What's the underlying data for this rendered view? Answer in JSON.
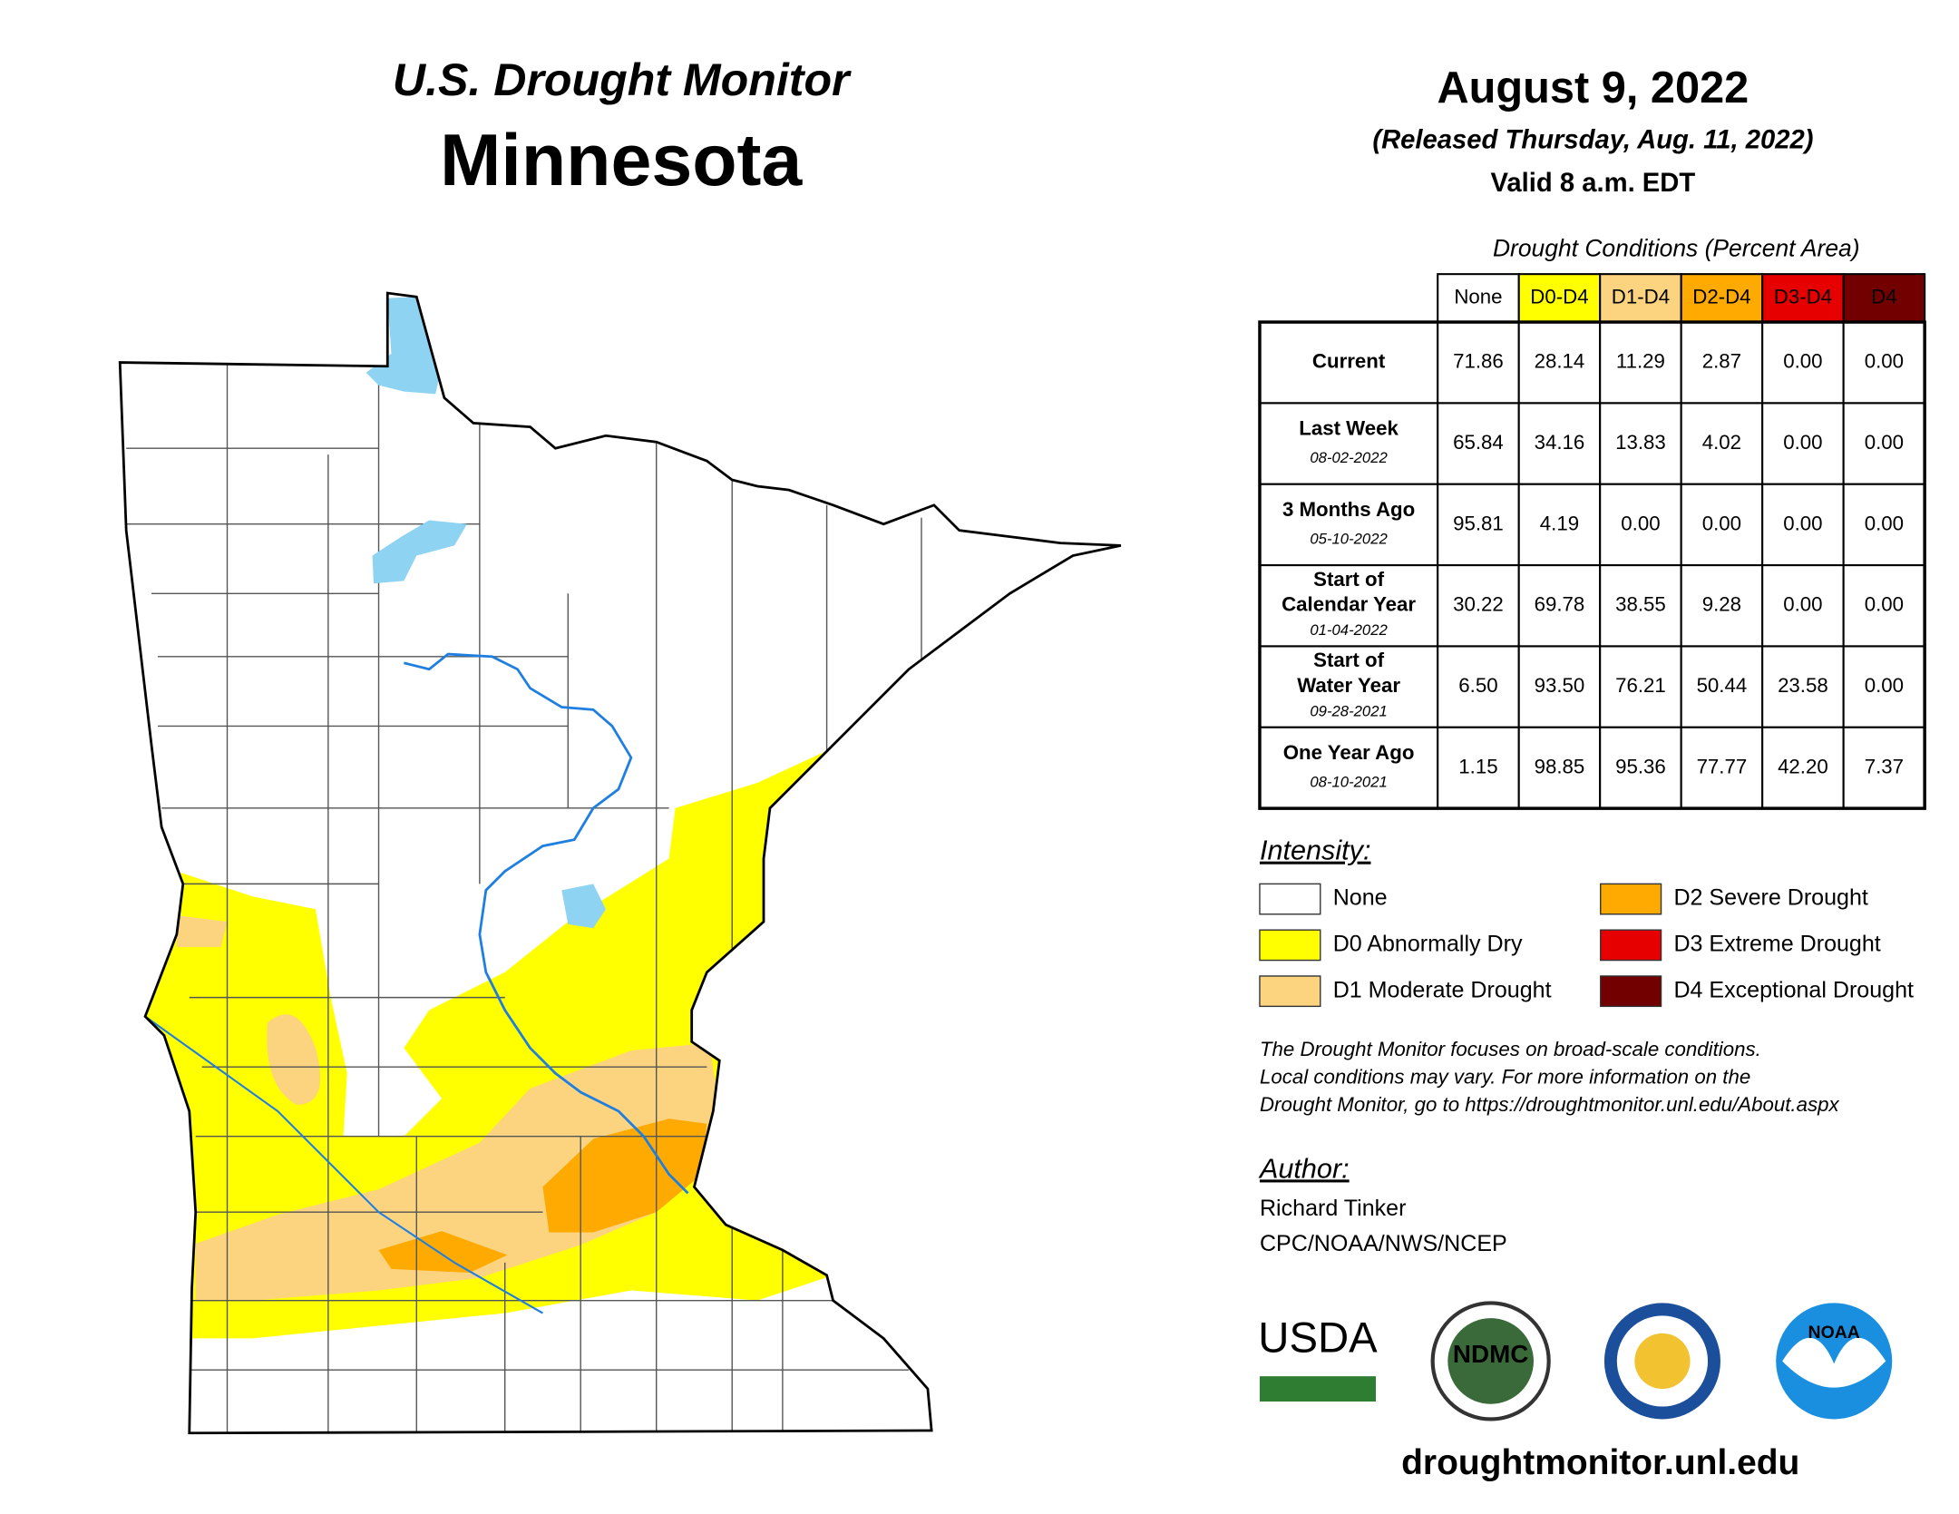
{
  "header": {
    "title": "U.S. Drought Monitor",
    "state": "Minnesota",
    "date": "August 9, 2022",
    "released": "(Released Thursday, Aug. 11, 2022)",
    "valid": "Valid 8 a.m. EDT"
  },
  "table": {
    "caption": "Drought Conditions (Percent Area)",
    "columns": [
      "None",
      "D0-D4",
      "D1-D4",
      "D2-D4",
      "D3-D4",
      "D4"
    ],
    "rows": [
      {
        "label": [
          "Current"
        ],
        "values": [
          "71.86",
          "28.14",
          "11.29",
          "2.87",
          "0.00",
          "0.00"
        ]
      },
      {
        "label": [
          "Last Week"
        ],
        "date": "08-02-2022",
        "values": [
          "65.84",
          "34.16",
          "13.83",
          "4.02",
          "0.00",
          "0.00"
        ]
      },
      {
        "label": [
          "3 Months Ago"
        ],
        "date": "05-10-2022",
        "values": [
          "95.81",
          "4.19",
          "0.00",
          "0.00",
          "0.00",
          "0.00"
        ]
      },
      {
        "label": [
          "Start of",
          "Calendar Year"
        ],
        "date": "01-04-2022",
        "values": [
          "30.22",
          "69.78",
          "38.55",
          "9.28",
          "0.00",
          "0.00"
        ]
      },
      {
        "label": [
          "Start of",
          "Water Year"
        ],
        "date": "09-28-2021",
        "values": [
          "6.50",
          "93.50",
          "76.21",
          "50.44",
          "23.58",
          "0.00"
        ]
      },
      {
        "label": [
          "One Year Ago"
        ],
        "date": "08-10-2021",
        "values": [
          "1.15",
          "98.85",
          "95.36",
          "77.77",
          "42.20",
          "7.37"
        ]
      }
    ]
  },
  "legend": {
    "title": "Intensity:",
    "items": [
      {
        "label": "None",
        "color": "#ffffff"
      },
      {
        "label": "D0 Abnormally Dry",
        "color": "#ffff00"
      },
      {
        "label": "D1 Moderate Drought",
        "color": "#fcd37f"
      },
      {
        "label": "D2 Severe Drought",
        "color": "#ffaa00"
      },
      {
        "label": "D3 Extreme Drought",
        "color": "#e60000"
      },
      {
        "label": "D4 Exceptional Drought",
        "color": "#730000"
      }
    ]
  },
  "note": [
    "The Drought Monitor focuses on broad-scale conditions.",
    "Local conditions may vary. For more information on the",
    "Drought Monitor, go to https://droughtmonitor.unl.edu/About.aspx"
  ],
  "author": {
    "title": "Author:",
    "name": "Richard Tinker",
    "org": "CPC/NOAA/NWS/NCEP"
  },
  "logos": [
    "USDA",
    "NDMC",
    "NOAA"
  ],
  "url": "droughtmonitor.unl.edu"
}
